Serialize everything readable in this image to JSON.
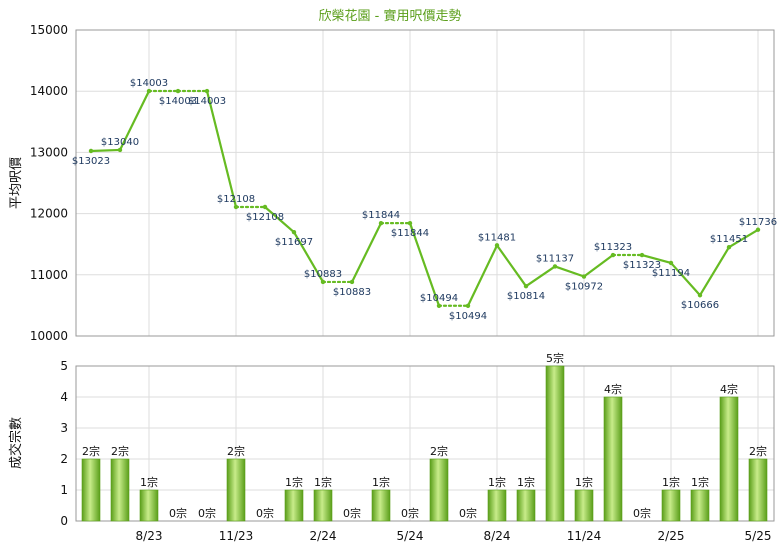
{
  "chart_data": {
    "type": "line",
    "title": "欣榮花園 - 實用呎價走勢",
    "title_color": "#5a9e1a",
    "line_color": "#66bb22",
    "bar_colors": {
      "light": "#c8ec8a",
      "mid": "#8acb3a",
      "dark": "#5a9e1a"
    },
    "x_ticks": [
      "8/23",
      "11/23",
      "2/24",
      "5/24",
      "8/24",
      "11/24",
      "2/25",
      "5/25"
    ],
    "price": {
      "ylabel": "平均呎價",
      "ylim": [
        10000,
        15000
      ],
      "yticks": [
        "10000",
        "11000",
        "12000",
        "13000",
        "14000",
        "15000"
      ],
      "values": [
        13023,
        13040,
        14003,
        14003,
        14003,
        12108,
        12108,
        11697,
        10883,
        10883,
        11844,
        11844,
        10494,
        10494,
        11481,
        10814,
        11137,
        10972,
        11323,
        11323,
        11194,
        10666,
        11451,
        11736
      ],
      "labels": [
        "$13023",
        "$13040",
        "$14003",
        "$14003",
        "$14003",
        "$12108",
        "$12108",
        "$11697",
        "$10883",
        "$10883",
        "$11844",
        "$11844",
        "$10494",
        "$10494",
        "$11481",
        "$10814",
        "$11137",
        "$10972",
        "$11323",
        "$11323",
        "$11194",
        "$10666",
        "$11451",
        "$11736"
      ]
    },
    "volume": {
      "ylabel": "成交宗數",
      "ylim": [
        0,
        5
      ],
      "yticks": [
        "0",
        "1",
        "2",
        "3",
        "4",
        "5"
      ],
      "values": [
        2,
        2,
        1,
        0,
        0,
        2,
        0,
        1,
        1,
        0,
        1,
        0,
        2,
        0,
        1,
        1,
        5,
        1,
        4,
        0,
        1,
        1,
        4,
        2
      ],
      "labels": [
        "2宗",
        "2宗",
        "1宗",
        "0宗",
        "0宗",
        "2宗",
        "0宗",
        "1宗",
        "1宗",
        "0宗",
        "1宗",
        "0宗",
        "2宗",
        "0宗",
        "1宗",
        "1宗",
        "5宗",
        "1宗",
        "4宗",
        "0宗",
        "1宗",
        "1宗",
        "4宗",
        "2宗"
      ]
    }
  }
}
